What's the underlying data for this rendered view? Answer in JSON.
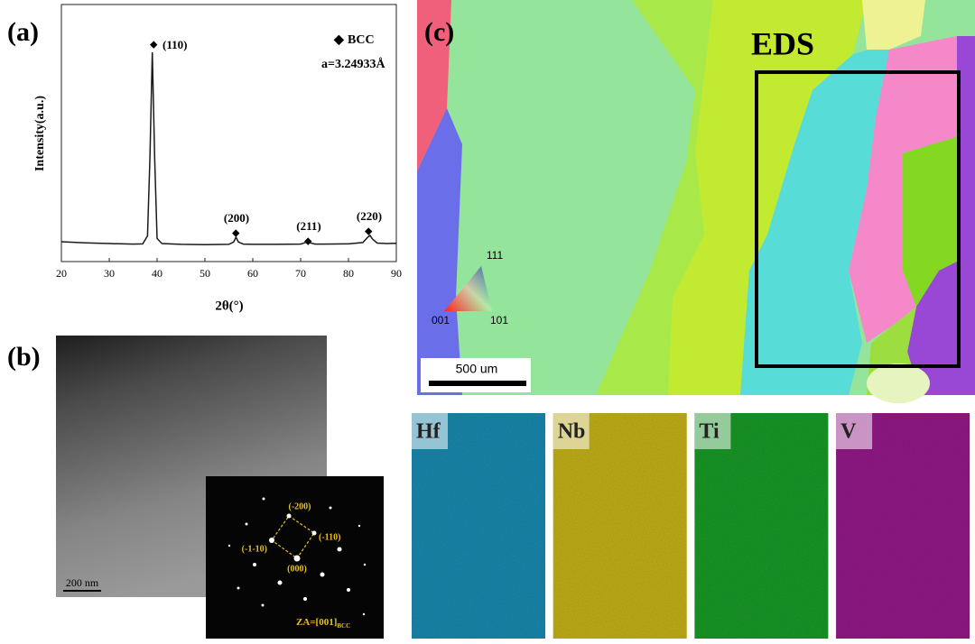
{
  "panels": {
    "a": "(a)",
    "b": "(b)",
    "c": "(c)"
  },
  "chart_data": {
    "type": "line",
    "x_label": "2θ(°)",
    "y_label": "Intensity(a.u.)",
    "x": [
      20,
      25,
      30,
      35,
      37,
      38,
      38.5,
      39,
      39.5,
      40,
      41,
      45,
      50,
      55,
      56,
      56.5,
      57,
      58,
      60,
      65,
      70,
      71,
      71.5,
      72,
      73,
      75,
      80,
      83,
      84,
      84.5,
      85,
      86,
      88,
      90
    ],
    "values": [
      7.7,
      7.3,
      7.0,
      6.8,
      6.9,
      10,
      40,
      81.4,
      40,
      9,
      7,
      6.7,
      6.6,
      6.7,
      7.6,
      9.5,
      7.6,
      6.8,
      6.7,
      6.7,
      6.8,
      7.4,
      8.0,
      7.3,
      6.8,
      6.8,
      6.9,
      7.4,
      9.4,
      10.2,
      8.8,
      7.2,
      7.0,
      7.1
    ],
    "color": "#1a1a1a",
    "xlim": [
      20,
      90
    ],
    "xticks": [
      20,
      30,
      40,
      50,
      60,
      70,
      80,
      90
    ],
    "ylim": [
      0,
      100
    ],
    "peak_labels": [
      "(110)",
      "(200)",
      "(211)",
      "(220)"
    ],
    "legend": "BCC",
    "lattice": "a=3.24933Å"
  },
  "tem": {
    "scale_bar": "200 nm",
    "saed": {
      "spots": [
        "(-200)",
        "(-110)",
        "(-1-10)",
        "(000)"
      ],
      "zone_axis": "ZA=[001]",
      "zone_axis_sub": "BCC"
    }
  },
  "ebsd": {
    "ipf": [
      "111",
      "001",
      "101"
    ],
    "scale_bar": "500 um",
    "eds_box": "EDS"
  },
  "eds_maps": [
    {
      "element": "Hf",
      "color": "#1c8db3"
    },
    {
      "element": "Nb",
      "color": "#c9b61a"
    },
    {
      "element": "Ti",
      "color": "#1d9e2a"
    },
    {
      "element": "V",
      "color": "#981c8c"
    }
  ]
}
